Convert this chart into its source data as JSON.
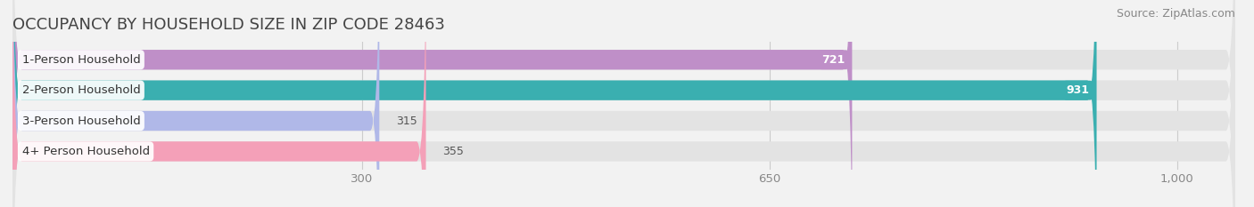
{
  "title": "OCCUPANCY BY HOUSEHOLD SIZE IN ZIP CODE 28463",
  "source": "Source: ZipAtlas.com",
  "categories": [
    "1-Person Household",
    "2-Person Household",
    "3-Person Household",
    "4+ Person Household"
  ],
  "values": [
    721,
    931,
    315,
    355
  ],
  "bar_colors": [
    "#bf8fc8",
    "#3aafb0",
    "#b0b8e8",
    "#f4a0b8"
  ],
  "xlim_display": [
    0,
    1000
  ],
  "xlim_data": 1000,
  "xticks": [
    300,
    650,
    1000
  ],
  "xtick_labels": [
    "300",
    "650",
    "1,000"
  ],
  "background_color": "#f2f2f2",
  "bar_bg_color": "#e3e3e3",
  "title_fontsize": 13,
  "label_fontsize": 9.5,
  "value_fontsize": 9,
  "source_fontsize": 9,
  "bar_height": 0.65,
  "bar_gap": 1.0,
  "n_bars": 4
}
